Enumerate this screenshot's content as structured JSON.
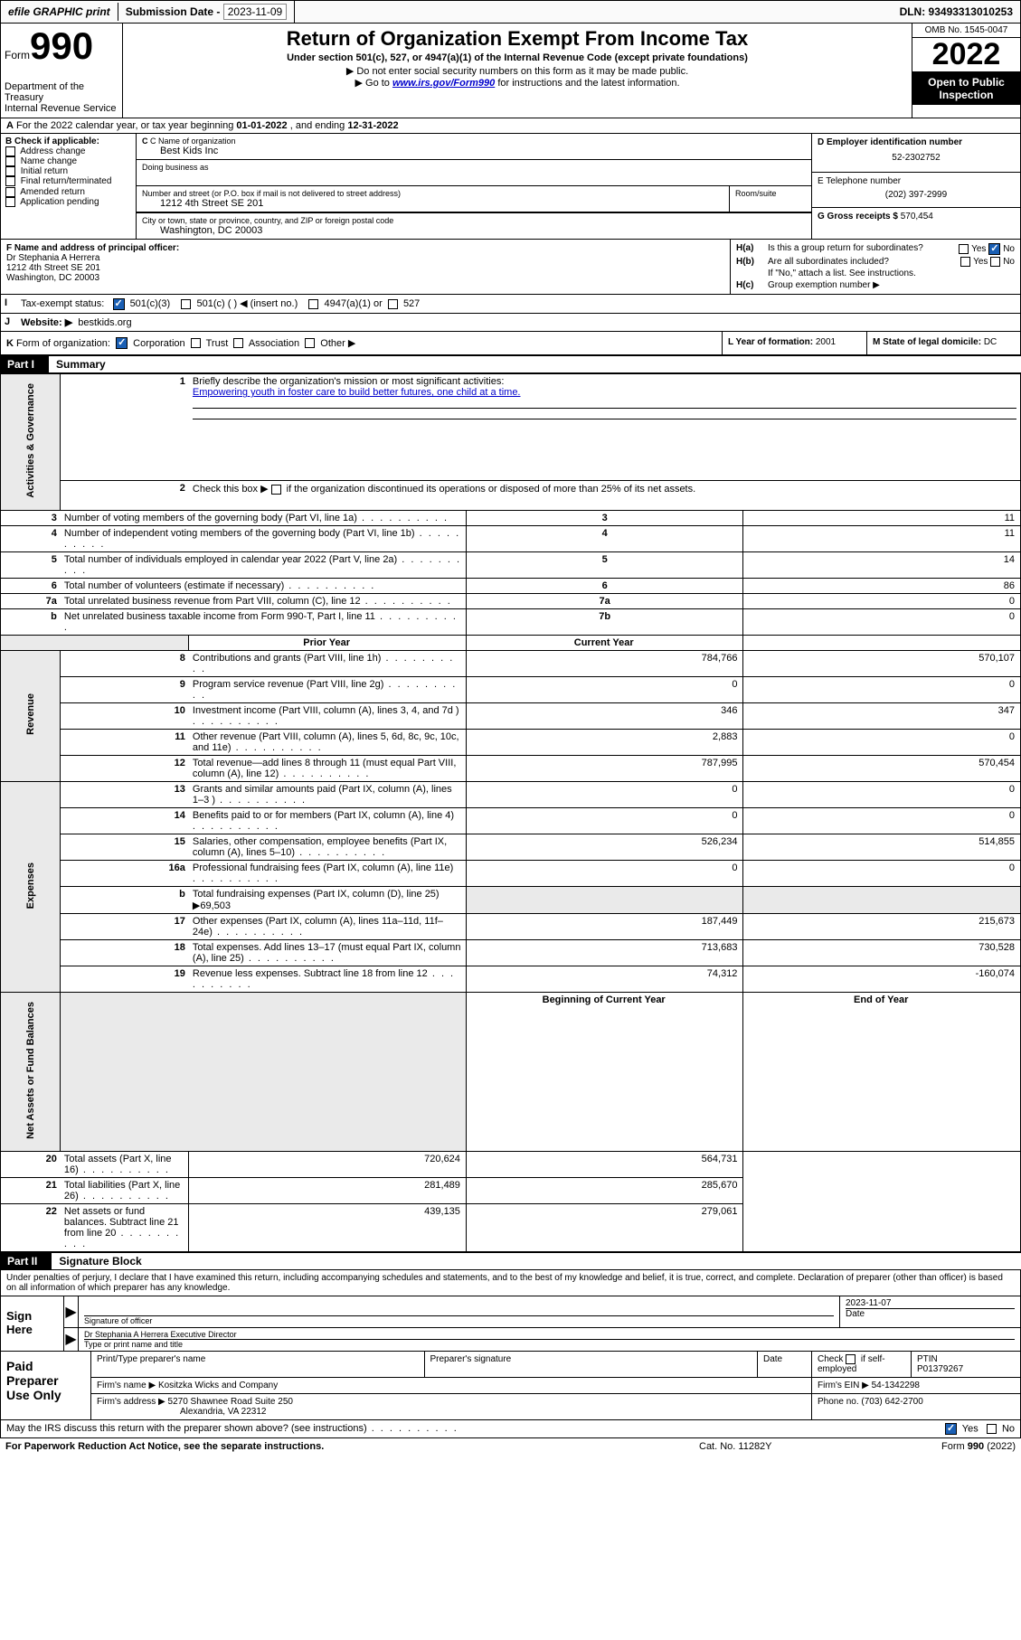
{
  "header_bar": {
    "efile": "efile GRAPHIC print",
    "sub_label": "Submission Date -",
    "sub_date": "2023-11-09",
    "dln": "DLN: 93493313010253"
  },
  "form_head": {
    "form_word": "Form",
    "form_num": "990",
    "dept": "Department of the Treasury",
    "irs": "Internal Revenue Service",
    "title": "Return of Organization Exempt From Income Tax",
    "sub1": "Under section 501(c), 527, or 4947(a)(1) of the Internal Revenue Code (except private foundations)",
    "sub2": "▶ Do not enter social security numbers on this form as it may be made public.",
    "sub3_pre": "▶ Go to ",
    "sub3_link": "www.irs.gov/Form990",
    "sub3_post": " for instructions and the latest information.",
    "omb": "OMB No. 1545-0047",
    "year": "2022",
    "otp1": "Open to Public",
    "otp2": "Inspection"
  },
  "row_a": {
    "label": "A",
    "text_pre": "For the 2022 calendar year, or tax year beginning ",
    "begin": "01-01-2022",
    "mid": " , and ending ",
    "end": "12-31-2022"
  },
  "col_b": {
    "head": "B Check if applicable:",
    "items": [
      "Address change",
      "Name change",
      "Initial return",
      "Final return/terminated",
      "Amended return",
      "Application pending"
    ]
  },
  "col_c": {
    "name_label": "C Name of organization",
    "name": "Best Kids Inc",
    "dba_label": "Doing business as",
    "addr_label": "Number and street (or P.O. box if mail is not delivered to street address)",
    "room_label": "Room/suite",
    "addr": "1212 4th Street SE 201",
    "city_label": "City or town, state or province, country, and ZIP or foreign postal code",
    "city": "Washington, DC  20003"
  },
  "col_de": {
    "d_label": "D Employer identification number",
    "d_val": "52-2302752",
    "e_label": "E Telephone number",
    "e_val": "(202) 397-2999",
    "g_label": "G Gross receipts $",
    "g_val": "570,454"
  },
  "block_f": {
    "label": "F  Name and address of principal officer:",
    "name": "Dr Stephania A Herrera",
    "addr1": "1212 4th Street SE 201",
    "addr2": "Washington, DC  20003"
  },
  "block_h": {
    "ha_lab": "H(a)",
    "ha_txt": "Is this a group return for subordinates?",
    "hb_lab": "H(b)",
    "hb_txt": "Are all subordinates included?",
    "hb_note": "If \"No,\" attach a list. See instructions.",
    "hc_lab": "H(c)",
    "hc_txt": "Group exemption number ▶",
    "yes": "Yes",
    "no": "No"
  },
  "row_i": {
    "lab": "I",
    "txt": "Tax-exempt status:",
    "o1": "501(c)(3)",
    "o2": "501(c) (  ) ◀ (insert no.)",
    "o3": "4947(a)(1) or",
    "o4": "527"
  },
  "row_j": {
    "lab": "J",
    "txt": "Website: ▶",
    "val": "bestkids.org"
  },
  "row_k": {
    "lab": "K",
    "txt": "Form of organization:",
    "o1": "Corporation",
    "o2": "Trust",
    "o3": "Association",
    "o4": "Other ▶"
  },
  "row_l": {
    "txt": "L Year of formation:",
    "val": "2001"
  },
  "row_m": {
    "txt": "M State of legal domicile:",
    "val": "DC"
  },
  "part1": {
    "no": "Part I",
    "title": "Summary"
  },
  "summary": {
    "side1": "Activities & Governance",
    "side2": "Revenue",
    "side3": "Expenses",
    "side4": "Net Assets or Fund Balances",
    "l1_lab": "1",
    "l1_txt": "Briefly describe the organization's mission or most significant activities:",
    "l1_mission": "Empowering youth in foster care to build better futures, one child at a time.",
    "l2_lab": "2",
    "l2_txt": "Check this box ▶       if the organization discontinued its operations or disposed of more than 25% of its net assets.",
    "hdr_prior": "Prior Year",
    "hdr_curr": "Current Year",
    "hdr_begin": "Beginning of Current Year",
    "hdr_end": "End of Year",
    "rows_a": [
      {
        "n": "3",
        "t": "Number of voting members of the governing body (Part VI, line 1a)",
        "b": "3",
        "v": "11"
      },
      {
        "n": "4",
        "t": "Number of independent voting members of the governing body (Part VI, line 1b)",
        "b": "4",
        "v": "11"
      },
      {
        "n": "5",
        "t": "Total number of individuals employed in calendar year 2022 (Part V, line 2a)",
        "b": "5",
        "v": "14"
      },
      {
        "n": "6",
        "t": "Total number of volunteers (estimate if necessary)",
        "b": "6",
        "v": "86"
      },
      {
        "n": "7a",
        "t": "Total unrelated business revenue from Part VIII, column (C), line 12",
        "b": "7a",
        "v": "0"
      },
      {
        "n": "b",
        "t": "Net unrelated business taxable income from Form 990-T, Part I, line 11",
        "b": "7b",
        "v": "0"
      }
    ],
    "rows_rev": [
      {
        "n": "8",
        "t": "Contributions and grants (Part VIII, line 1h)",
        "p": "784,766",
        "c": "570,107"
      },
      {
        "n": "9",
        "t": "Program service revenue (Part VIII, line 2g)",
        "p": "0",
        "c": "0"
      },
      {
        "n": "10",
        "t": "Investment income (Part VIII, column (A), lines 3, 4, and 7d )",
        "p": "346",
        "c": "347"
      },
      {
        "n": "11",
        "t": "Other revenue (Part VIII, column (A), lines 5, 6d, 8c, 9c, 10c, and 11e)",
        "p": "2,883",
        "c": "0"
      },
      {
        "n": "12",
        "t": "Total revenue—add lines 8 through 11 (must equal Part VIII, column (A), line 12)",
        "p": "787,995",
        "c": "570,454"
      }
    ],
    "rows_exp": [
      {
        "n": "13",
        "t": "Grants and similar amounts paid (Part IX, column (A), lines 1–3 )",
        "p": "0",
        "c": "0"
      },
      {
        "n": "14",
        "t": "Benefits paid to or for members (Part IX, column (A), line 4)",
        "p": "0",
        "c": "0"
      },
      {
        "n": "15",
        "t": "Salaries, other compensation, employee benefits (Part IX, column (A), lines 5–10)",
        "p": "526,234",
        "c": "514,855"
      },
      {
        "n": "16a",
        "t": "Professional fundraising fees (Part IX, column (A), line 11e)",
        "p": "0",
        "c": "0"
      },
      {
        "n": "b",
        "t": "Total fundraising expenses (Part IX, column (D), line 25) ▶69,503",
        "p": "",
        "c": ""
      },
      {
        "n": "17",
        "t": "Other expenses (Part IX, column (A), lines 11a–11d, 11f–24e)",
        "p": "187,449",
        "c": "215,673"
      },
      {
        "n": "18",
        "t": "Total expenses. Add lines 13–17 (must equal Part IX, column (A), line 25)",
        "p": "713,683",
        "c": "730,528"
      },
      {
        "n": "19",
        "t": "Revenue less expenses. Subtract line 18 from line 12",
        "p": "74,312",
        "c": "-160,074"
      }
    ],
    "rows_net": [
      {
        "n": "20",
        "t": "Total assets (Part X, line 16)",
        "p": "720,624",
        "c": "564,731"
      },
      {
        "n": "21",
        "t": "Total liabilities (Part X, line 26)",
        "p": "281,489",
        "c": "285,670"
      },
      {
        "n": "22",
        "t": "Net assets or fund balances. Subtract line 21 from line 20",
        "p": "439,135",
        "c": "279,061"
      }
    ]
  },
  "part2": {
    "no": "Part II",
    "title": "Signature Block"
  },
  "sig": {
    "intro": "Under penalties of perjury, I declare that I have examined this return, including accompanying schedules and statements, and to the best of my knowledge and belief, it is true, correct, and complete. Declaration of preparer (other than officer) is based on all information of which preparer has any knowledge.",
    "sign_here": "Sign Here",
    "sig_officer": "Signature of officer",
    "date_lab": "Date",
    "date_val": "2023-11-07",
    "name": "Dr Stephania A Herrera  Executive Director",
    "name_lab": "Type or print name and title"
  },
  "paid": {
    "title": "Paid Preparer Use Only",
    "h1": "Print/Type preparer's name",
    "h2": "Preparer's signature",
    "h3": "Date",
    "h4_pre": "Check",
    "h4_post": "if self-employed",
    "h5": "PTIN",
    "ptin": "P01379267",
    "firm_name_lab": "Firm's name     ▶",
    "firm_name": "Kositzka Wicks and Company",
    "firm_ein_lab": "Firm's EIN ▶",
    "firm_ein": "54-1342298",
    "firm_addr_lab": "Firm's address ▶",
    "firm_addr1": "5270 Shawnee Road Suite 250",
    "firm_addr2": "Alexandria, VA  22312",
    "phone_lab": "Phone no.",
    "phone": "(703) 642-2700"
  },
  "discuss": {
    "txt": "May the IRS discuss this return with the preparer shown above? (see instructions)",
    "yes": "Yes",
    "no": "No"
  },
  "foot": {
    "l": "For Paperwork Reduction Act Notice, see the separate instructions.",
    "c": "Cat. No. 11282Y",
    "r_pre": "Form ",
    "r_b": "990",
    "r_post": " (2022)"
  }
}
